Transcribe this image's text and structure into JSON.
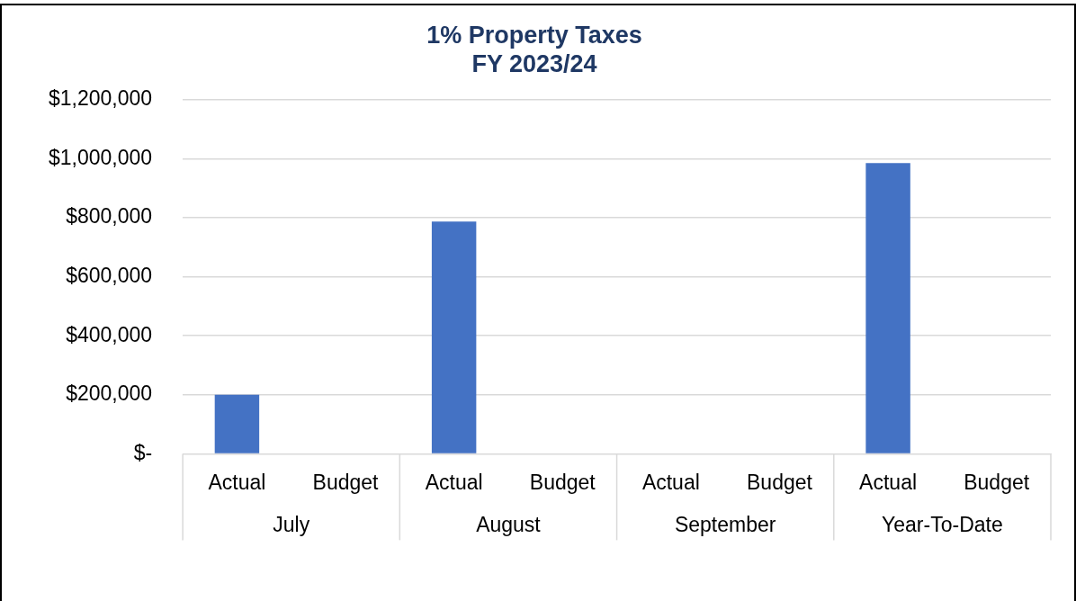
{
  "chart_data": {
    "type": "bar",
    "title": "1% Property Taxes",
    "subtitle": "FY 2023/24",
    "categories": [
      "July",
      "August",
      "September",
      "Year-To-Date"
    ],
    "series": [
      {
        "name": "Actual",
        "color": "#4472c4",
        "values": [
          200000,
          787000,
          null,
          985000
        ]
      },
      {
        "name": "Budget",
        "values": [
          null,
          null,
          null,
          null
        ]
      }
    ],
    "ylim": [
      0,
      1200000
    ],
    "yticks": [
      {
        "value": 0,
        "label": "$-"
      },
      {
        "value": 200000,
        "label": "$200,000"
      },
      {
        "value": 400000,
        "label": "$400,000"
      },
      {
        "value": 600000,
        "label": "$600,000"
      },
      {
        "value": 800000,
        "label": "$800,000"
      },
      {
        "value": 1000000,
        "label": "$1,000,000"
      },
      {
        "value": 1200000,
        "label": "$1,200,000"
      }
    ],
    "grid": "y",
    "legend": false
  }
}
